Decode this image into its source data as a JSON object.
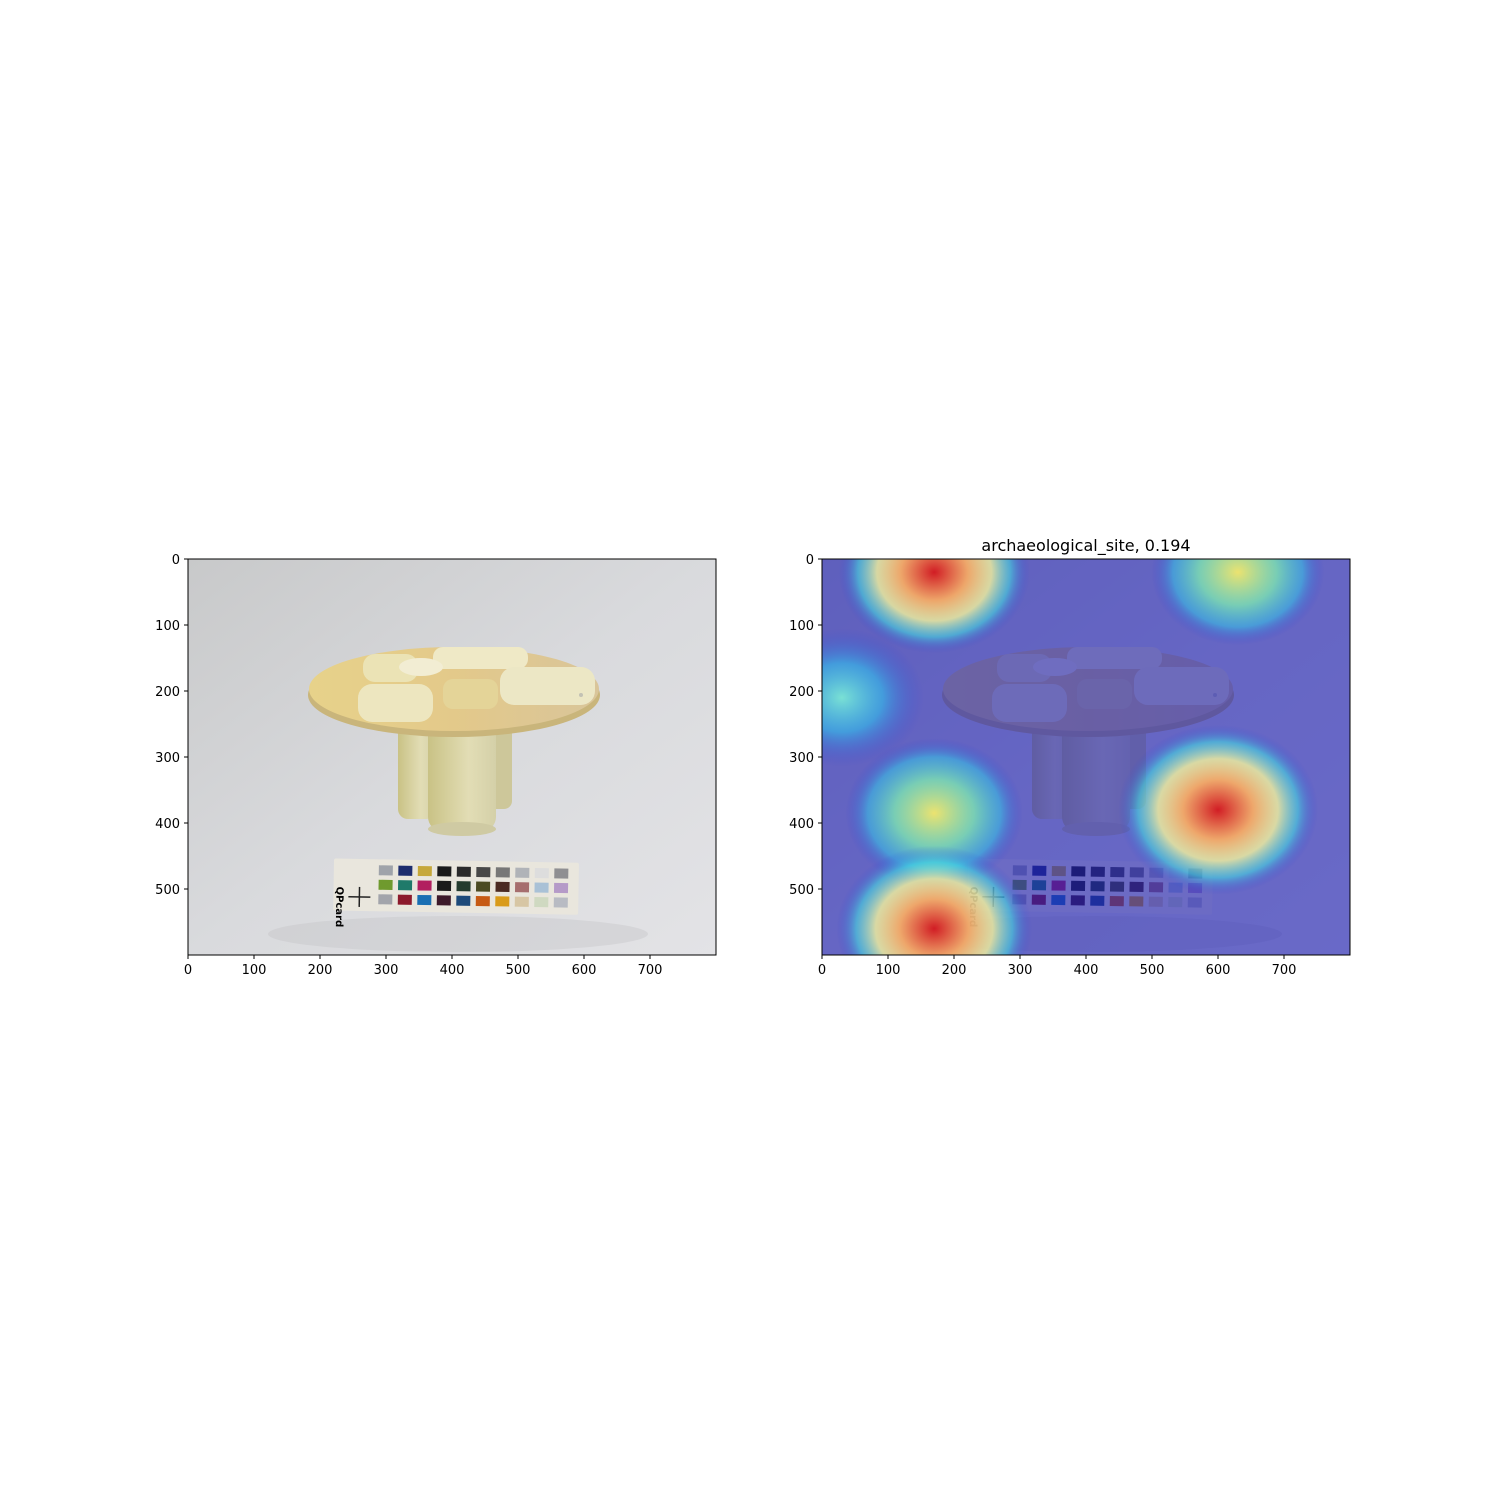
{
  "figure": {
    "background": "#ffffff",
    "panels": [
      {
        "id": "original",
        "title": "",
        "x_ticks": [
          "0",
          "100",
          "200",
          "300",
          "400",
          "500",
          "600",
          "700"
        ],
        "y_ticks": [
          "0",
          "100",
          "200",
          "300",
          "400",
          "500"
        ],
        "x_range": [
          0,
          800
        ],
        "y_range": [
          0,
          600
        ],
        "image_content": "photo of an oval mottled stone table on four pillar legs with a color calibration card (QPcard)"
      },
      {
        "id": "heatmap",
        "title": "archaeological_site, 0.194",
        "x_ticks": [
          "0",
          "100",
          "200",
          "300",
          "400",
          "500",
          "600",
          "700"
        ],
        "y_ticks": [
          "0",
          "100",
          "200",
          "300",
          "400",
          "500"
        ],
        "x_range": [
          0,
          800
        ],
        "y_range": [
          0,
          600
        ],
        "colormap": "jet",
        "hotspots": [
          {
            "x": 170,
            "y": 20,
            "intensity": 0.9
          },
          {
            "x": 630,
            "y": 20,
            "intensity": 0.7
          },
          {
            "x": 30,
            "y": 210,
            "intensity": 0.6
          },
          {
            "x": 170,
            "y": 385,
            "intensity": 0.75
          },
          {
            "x": 170,
            "y": 560,
            "intensity": 0.95
          },
          {
            "x": 600,
            "y": 380,
            "intensity": 1.0
          }
        ]
      }
    ],
    "card_label": "QPcard"
  }
}
